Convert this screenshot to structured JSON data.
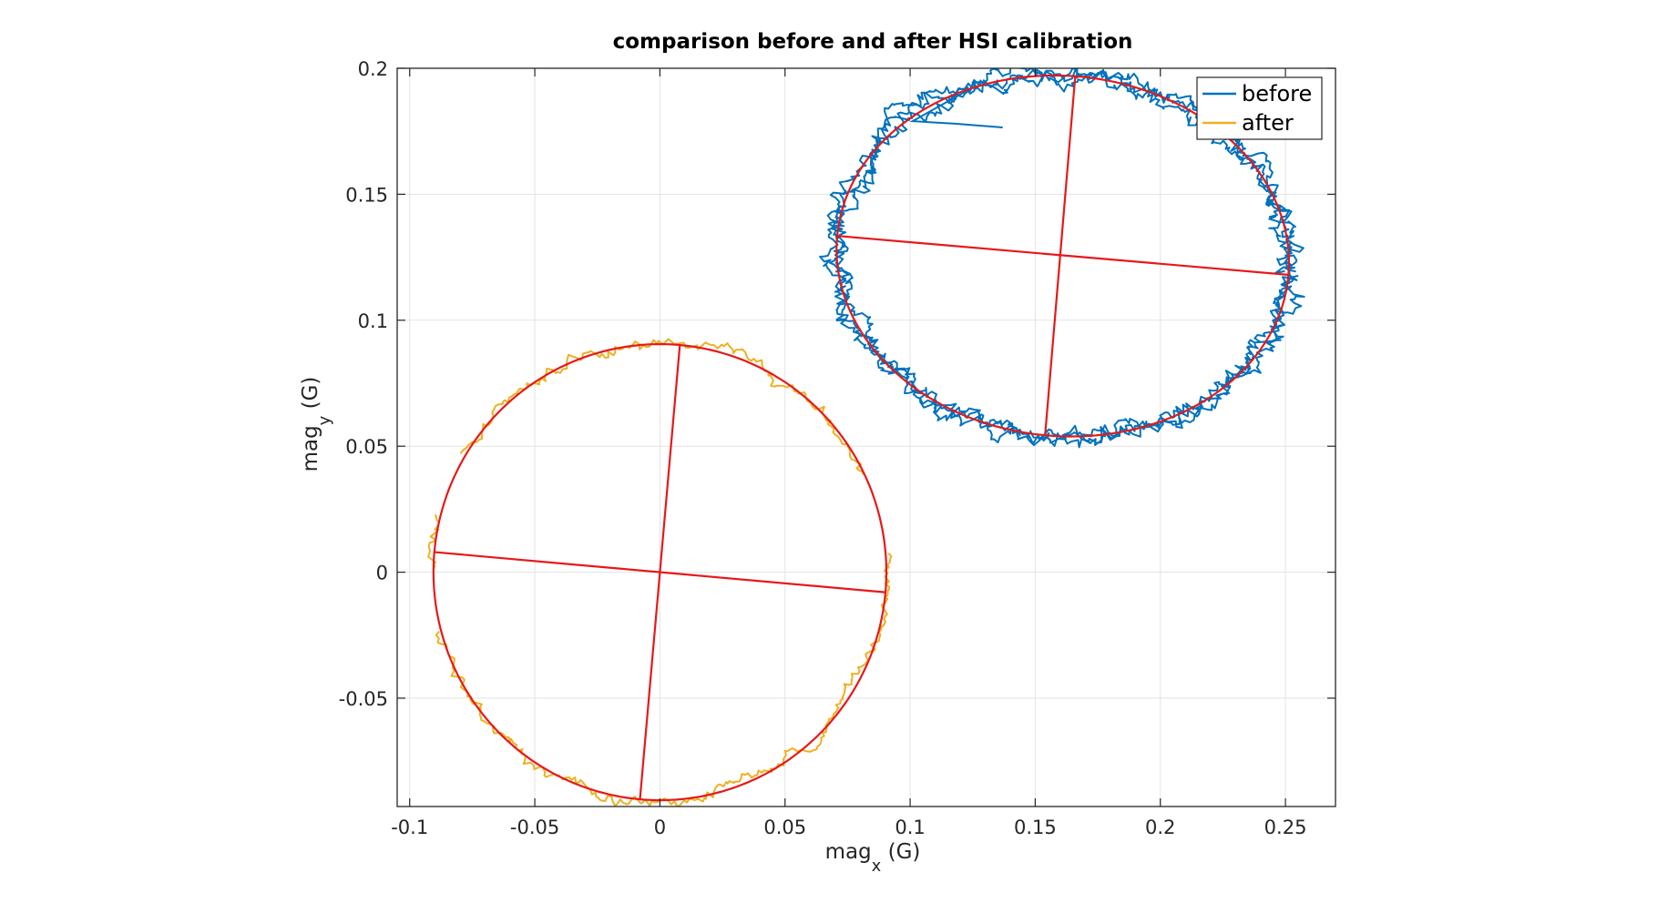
{
  "chart_data": {
    "type": "line",
    "title": "comparison before and after HSI calibration",
    "xlabel": {
      "main": "mag",
      "sub": "x",
      "unit": " (G)"
    },
    "ylabel": {
      "main": "mag",
      "sub": "y",
      "unit": " (G)"
    },
    "xlim": [
      -0.105,
      0.27
    ],
    "ylim": [
      -0.093,
      0.2
    ],
    "xticks": [
      -0.1,
      -0.05,
      0,
      0.05,
      0.1,
      0.15,
      0.2,
      0.25
    ],
    "xtick_labels": [
      "-0.1",
      "-0.05",
      "0",
      "0.05",
      "0.1",
      "0.15",
      "0.2",
      "0.25"
    ],
    "yticks": [
      -0.05,
      0,
      0.05,
      0.1,
      0.15,
      0.2
    ],
    "ytick_labels": [
      "-0.05",
      "0",
      "0.05",
      "0.1",
      "0.15",
      "0.2"
    ],
    "grid": true,
    "legend_position": "top-right",
    "series": [
      {
        "name": "before",
        "color": "#0072BD",
        "ellipse": {
          "cx": 0.161,
          "cy": 0.1255,
          "rx": 0.0905,
          "ry": 0.0715,
          "rotation_deg": -4.5
        },
        "noise": 0.004,
        "loops": 3,
        "extra": [
          {
            "x": 0.137,
            "y": 0.1765
          },
          {
            "x": 0.118,
            "y": 0.178
          },
          {
            "x": 0.101,
            "y": 0.179
          }
        ]
      },
      {
        "name": "after",
        "color": "#EDB120",
        "ellipse": {
          "cx": 0.0,
          "cy": 0.0,
          "rx": 0.0905,
          "ry": 0.0905,
          "rotation_deg": 0
        },
        "noise": 0.0025,
        "loops": 1,
        "gaps_deg": [
          [
            5,
            25
          ],
          [
            150,
            165
          ],
          [
            180,
            195
          ]
        ]
      }
    ],
    "fits": [
      {
        "color": "#E6191A",
        "ellipse": {
          "cx": 0.161,
          "cy": 0.1255,
          "rx": 0.0905,
          "ry": 0.0715,
          "rotation_deg": -4.5
        },
        "axes": [
          {
            "x": [
              0.0705,
              0.2515
            ],
            "y": [
              0.1335,
              0.118
            ]
          },
          {
            "x": [
              0.166,
              0.154
            ],
            "y": [
              0.197,
              0.055
            ]
          }
        ]
      },
      {
        "color": "#E6191A",
        "ellipse": {
          "cx": 0.0,
          "cy": 0.0,
          "rx": 0.0905,
          "ry": 0.0905,
          "rotation_deg": 0
        },
        "axes": [
          {
            "x": [
              -0.0905,
              0.0905
            ],
            "y": [
              0.008,
              -0.008
            ]
          },
          {
            "x": [
              0.008,
              -0.008
            ],
            "y": [
              0.0905,
              -0.0905
            ]
          }
        ]
      }
    ]
  }
}
